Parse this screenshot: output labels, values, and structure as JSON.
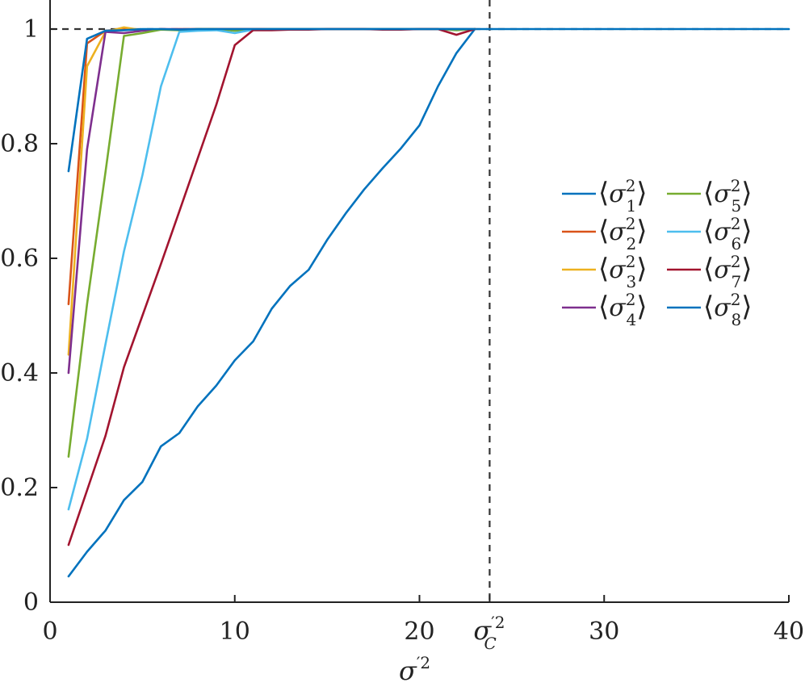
{
  "chart_data": {
    "type": "line",
    "title": "",
    "xlabel": "σ′2",
    "ylabel": "",
    "xlim": [
      0,
      40
    ],
    "ylim": [
      0,
      1.03
    ],
    "x_ticks": [
      {
        "value": 0,
        "label": "0"
      },
      {
        "value": 10,
        "label": "10"
      },
      {
        "value": 20,
        "label": "20"
      },
      {
        "value": 30,
        "label": "30"
      },
      {
        "value": 40,
        "label": "40"
      }
    ],
    "y_ticks": [
      {
        "value": 0,
        "label": "0"
      },
      {
        "value": 0.2,
        "label": "0.2"
      },
      {
        "value": 0.4,
        "label": "0.4"
      },
      {
        "value": 0.6,
        "label": "0.6"
      },
      {
        "value": 0.8,
        "label": "0.8"
      },
      {
        "value": 1,
        "label": "1"
      }
    ],
    "reference_lines": {
      "horizontal": {
        "y": 1,
        "style": "dashed",
        "color": "#333333"
      },
      "vertical": {
        "x": 23.8,
        "style": "dashed",
        "color": "#333333",
        "tick_label_base": "σ",
        "tick_label_sup": "′2",
        "tick_label_sub": "C"
      }
    },
    "legend": {
      "placement": "right",
      "columns": 2
    },
    "grid": false,
    "series": [
      {
        "name": "⟨σ1²⟩",
        "base": "σ",
        "sub": "1",
        "color": "#0072BD",
        "x": [
          1,
          2,
          3,
          4,
          5,
          6,
          7,
          8,
          9,
          10,
          11,
          12,
          13,
          14,
          15,
          16,
          17,
          18,
          19,
          20,
          21,
          22,
          23,
          24,
          25,
          30,
          35,
          40
        ],
        "y": [
          0.045,
          0.088,
          0.125,
          0.178,
          0.21,
          0.272,
          0.295,
          0.342,
          0.378,
          0.422,
          0.455,
          0.512,
          0.552,
          0.58,
          0.632,
          0.678,
          0.72,
          0.757,
          0.792,
          0.832,
          0.9,
          0.958,
          1.0,
          1.0,
          1.0,
          1.0,
          1.0,
          1.0
        ]
      },
      {
        "name": "⟨σ2²⟩",
        "base": "σ",
        "sub": "2",
        "color": "#D95319",
        "x": [
          1,
          2,
          3,
          4,
          5,
          6,
          7,
          8,
          9,
          10,
          11,
          12,
          13,
          14,
          15,
          16,
          17,
          18,
          19,
          20,
          21,
          22,
          23
        ],
        "y": [
          0.52,
          0.975,
          0.997,
          1.0,
          0.998,
          1.0,
          0.999,
          1.0,
          1.0,
          1.0,
          1.0,
          1.0,
          1.0,
          1.0,
          1.0,
          1.0,
          1.0,
          1.0,
          1.0,
          1.0,
          1.0,
          1.0,
          1.0
        ]
      },
      {
        "name": "⟨σ3²⟩",
        "base": "σ",
        "sub": "3",
        "color": "#EDB120",
        "x": [
          1,
          2,
          3,
          4,
          5,
          6,
          7,
          8,
          9,
          10,
          11,
          12,
          13,
          14,
          15,
          16,
          17,
          18,
          19,
          20,
          21,
          22,
          23
        ],
        "y": [
          0.432,
          0.935,
          0.995,
          1.003,
          0.998,
          0.999,
          1.0,
          1.0,
          1.0,
          1.0,
          1.0,
          1.0,
          1.0,
          1.0,
          1.0,
          1.0,
          1.0,
          1.0,
          1.0,
          1.0,
          1.0,
          1.0,
          1.0
        ]
      },
      {
        "name": "⟨σ4²⟩",
        "base": "σ",
        "sub": "4",
        "color": "#7E2F8E",
        "x": [
          1,
          2,
          3,
          4,
          5,
          6,
          7,
          8,
          9,
          10,
          11,
          12,
          13,
          14,
          15,
          16,
          17,
          18,
          19,
          20,
          21,
          22,
          23
        ],
        "y": [
          0.4,
          0.79,
          0.995,
          0.993,
          0.997,
          1.0,
          1.0,
          1.0,
          1.0,
          1.0,
          1.0,
          1.0,
          1.0,
          1.0,
          1.0,
          1.0,
          1.0,
          1.0,
          1.0,
          1.0,
          1.0,
          1.0,
          1.0
        ]
      },
      {
        "name": "⟨σ5²⟩",
        "base": "σ",
        "sub": "5",
        "color": "#77AC30",
        "x": [
          1,
          2,
          3,
          4,
          5,
          6,
          7,
          8,
          9,
          10,
          11,
          12,
          13,
          14,
          15,
          16,
          17,
          18,
          19,
          20,
          21,
          22,
          23
        ],
        "y": [
          0.254,
          0.52,
          0.75,
          0.988,
          0.993,
          0.999,
          0.998,
          1.0,
          1.0,
          0.997,
          0.999,
          1.0,
          1.0,
          1.0,
          1.0,
          1.0,
          1.0,
          1.0,
          1.0,
          1.0,
          1.0,
          0.998,
          1.0
        ]
      },
      {
        "name": "⟨σ6²⟩",
        "base": "σ",
        "sub": "6",
        "color": "#4DBEEE",
        "x": [
          1,
          2,
          3,
          4,
          5,
          6,
          7,
          8,
          9,
          10,
          11,
          12,
          13,
          14,
          15,
          16,
          17,
          18,
          19,
          20,
          21,
          22,
          23
        ],
        "y": [
          0.162,
          0.285,
          0.45,
          0.612,
          0.745,
          0.9,
          0.995,
          0.997,
          0.998,
          0.993,
          0.999,
          1.0,
          1.0,
          1.0,
          1.0,
          1.0,
          1.0,
          1.0,
          1.0,
          1.0,
          1.0,
          1.0,
          1.0
        ]
      },
      {
        "name": "⟨σ7²⟩",
        "base": "σ",
        "sub": "7",
        "color": "#A2142F",
        "x": [
          1,
          2,
          3,
          4,
          5,
          6,
          7,
          8,
          9,
          10,
          11,
          12,
          13,
          14,
          15,
          16,
          17,
          18,
          19,
          20,
          21,
          22,
          23
        ],
        "y": [
          0.1,
          0.195,
          0.29,
          0.41,
          0.5,
          0.59,
          0.682,
          0.775,
          0.868,
          0.972,
          0.998,
          0.998,
          0.999,
          0.999,
          1.0,
          1.0,
          1.0,
          0.999,
          0.999,
          1.0,
          1.0,
          0.99,
          1.0
        ]
      },
      {
        "name": "⟨σ8²⟩",
        "base": "σ",
        "sub": "8",
        "color": "#0072BD",
        "x": [
          1,
          2,
          3,
          4,
          5,
          6,
          7,
          8,
          9,
          10,
          11,
          12,
          13,
          14,
          15,
          16,
          17,
          18,
          19,
          20,
          21,
          22,
          23
        ],
        "y": [
          0.752,
          0.983,
          0.997,
          0.998,
          1.0,
          1.0,
          0.999,
          1.0,
          1.0,
          1.0,
          1.0,
          1.0,
          1.0,
          1.0,
          1.0,
          1.0,
          1.0,
          1.0,
          1.0,
          1.0,
          1.0,
          1.0,
          1.0
        ]
      }
    ]
  }
}
